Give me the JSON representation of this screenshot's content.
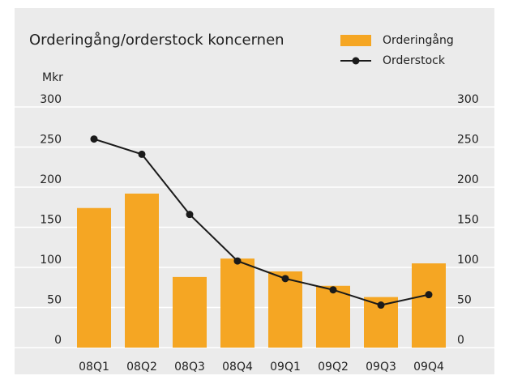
{
  "chart_data": {
    "type": "bar-line",
    "title": "Orderingång/orderstock koncernen",
    "y_label": "Mkr",
    "categories": [
      "08Q1",
      "08Q2",
      "08Q3",
      "08Q4",
      "09Q1",
      "09Q2",
      "09Q3",
      "09Q4"
    ],
    "series": [
      {
        "name": "Orderingång",
        "type": "bar",
        "color": "#f5a623",
        "values": [
          174,
          192,
          88,
          111,
          95,
          77,
          63,
          105
        ]
      },
      {
        "name": "Orderstock",
        "type": "line",
        "axis": "y2",
        "color": "#1a1a1a",
        "values": [
          260,
          241,
          166,
          108,
          86,
          72,
          53,
          66
        ]
      }
    ],
    "ylim": [
      0,
      300
    ],
    "yticks": [
      0,
      50,
      100,
      150,
      200,
      250,
      300
    ],
    "y2lim": [
      0,
      300
    ],
    "y2ticks": [
      0,
      50,
      100,
      150,
      200,
      250,
      300
    ],
    "grid": true
  }
}
